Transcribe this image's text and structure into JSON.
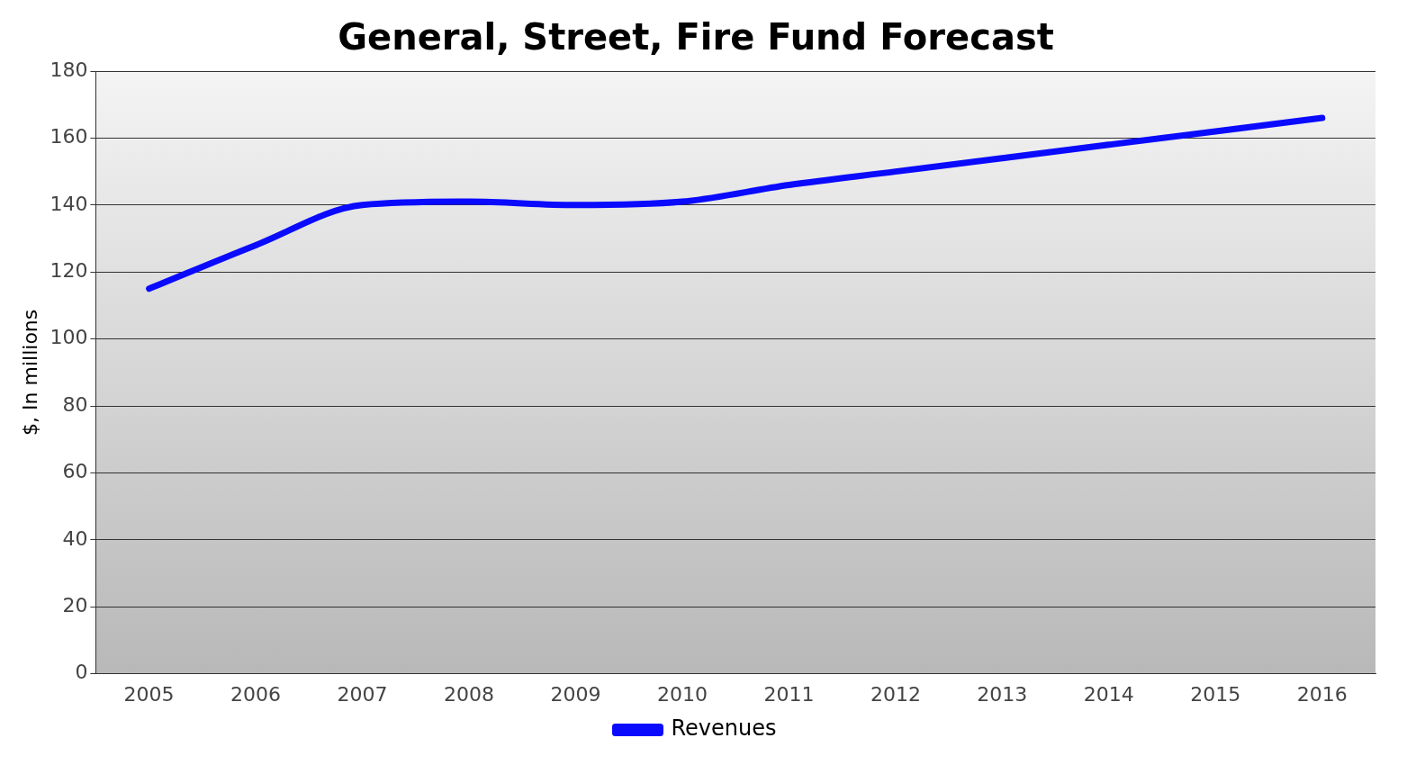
{
  "chart_data": {
    "type": "line",
    "title": "General, Street, Fire Fund Forecast",
    "ylabel": "$, In millions",
    "categories": [
      "2005",
      "2006",
      "2007",
      "2008",
      "2009",
      "2010",
      "2011",
      "2012",
      "2013",
      "2014",
      "2015",
      "2016"
    ],
    "series": [
      {
        "name": "Revenues",
        "color": "#0a0aff",
        "values": [
          115,
          128,
          140,
          141,
          140,
          141,
          146,
          150,
          154,
          158,
          162,
          166
        ]
      }
    ],
    "ylim": [
      0,
      180
    ],
    "yticks": [
      0,
      20,
      40,
      60,
      80,
      100,
      120,
      140,
      160,
      180
    ],
    "grid": "y",
    "legend": "bottom",
    "marker": "none",
    "line_style": "solid"
  }
}
